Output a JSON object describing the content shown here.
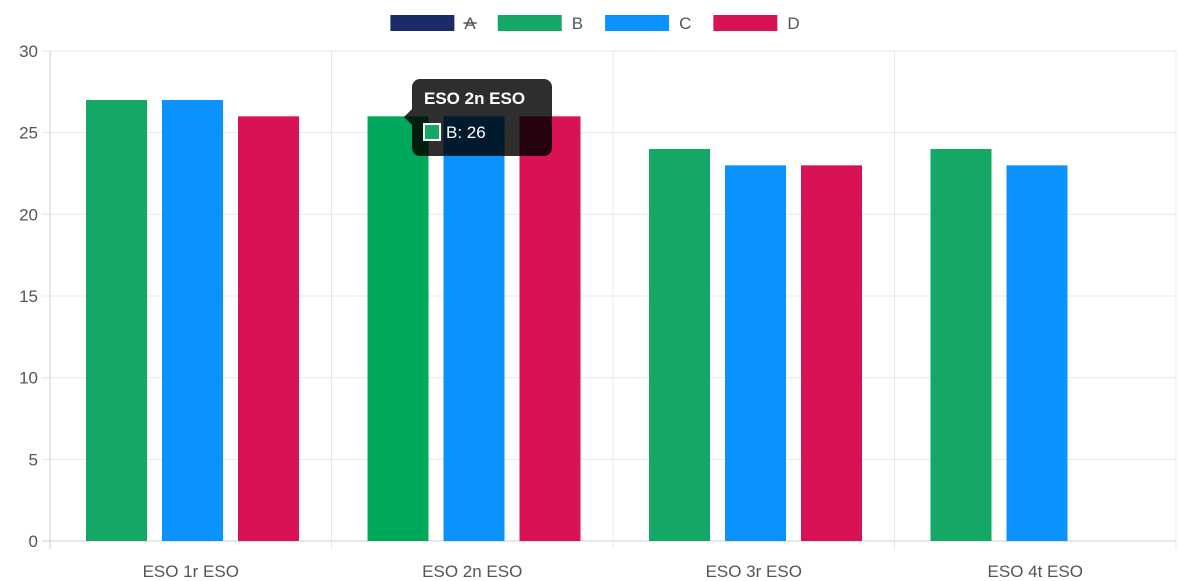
{
  "chart_data": {
    "type": "bar",
    "categories": [
      "ESO 1r ESO",
      "ESO 2n ESO",
      "ESO 3r ESO",
      "ESO 4t ESO"
    ],
    "series": [
      {
        "name": "A",
        "hidden": true,
        "color": "#1a2b6b",
        "values": [
          null,
          null,
          null,
          null
        ]
      },
      {
        "name": "B",
        "color": "#13a866",
        "values": [
          27,
          26,
          24,
          24
        ]
      },
      {
        "name": "C",
        "color": "#0a93ff",
        "values": [
          27,
          26,
          23,
          23
        ]
      },
      {
        "name": "D",
        "color": "#d81255",
        "values": [
          26,
          26,
          23,
          null
        ]
      }
    ],
    "ylim": [
      0,
      30
    ],
    "yticks": [
      0,
      5,
      10,
      15,
      20,
      25,
      30
    ],
    "xlabel": "",
    "ylabel": "",
    "title": "",
    "grid": true,
    "legend_position": "top-center",
    "tooltip": {
      "title": "ESO 2n ESO",
      "label": "B: 26",
      "series": "B",
      "category": "ESO 2n ESO"
    }
  }
}
